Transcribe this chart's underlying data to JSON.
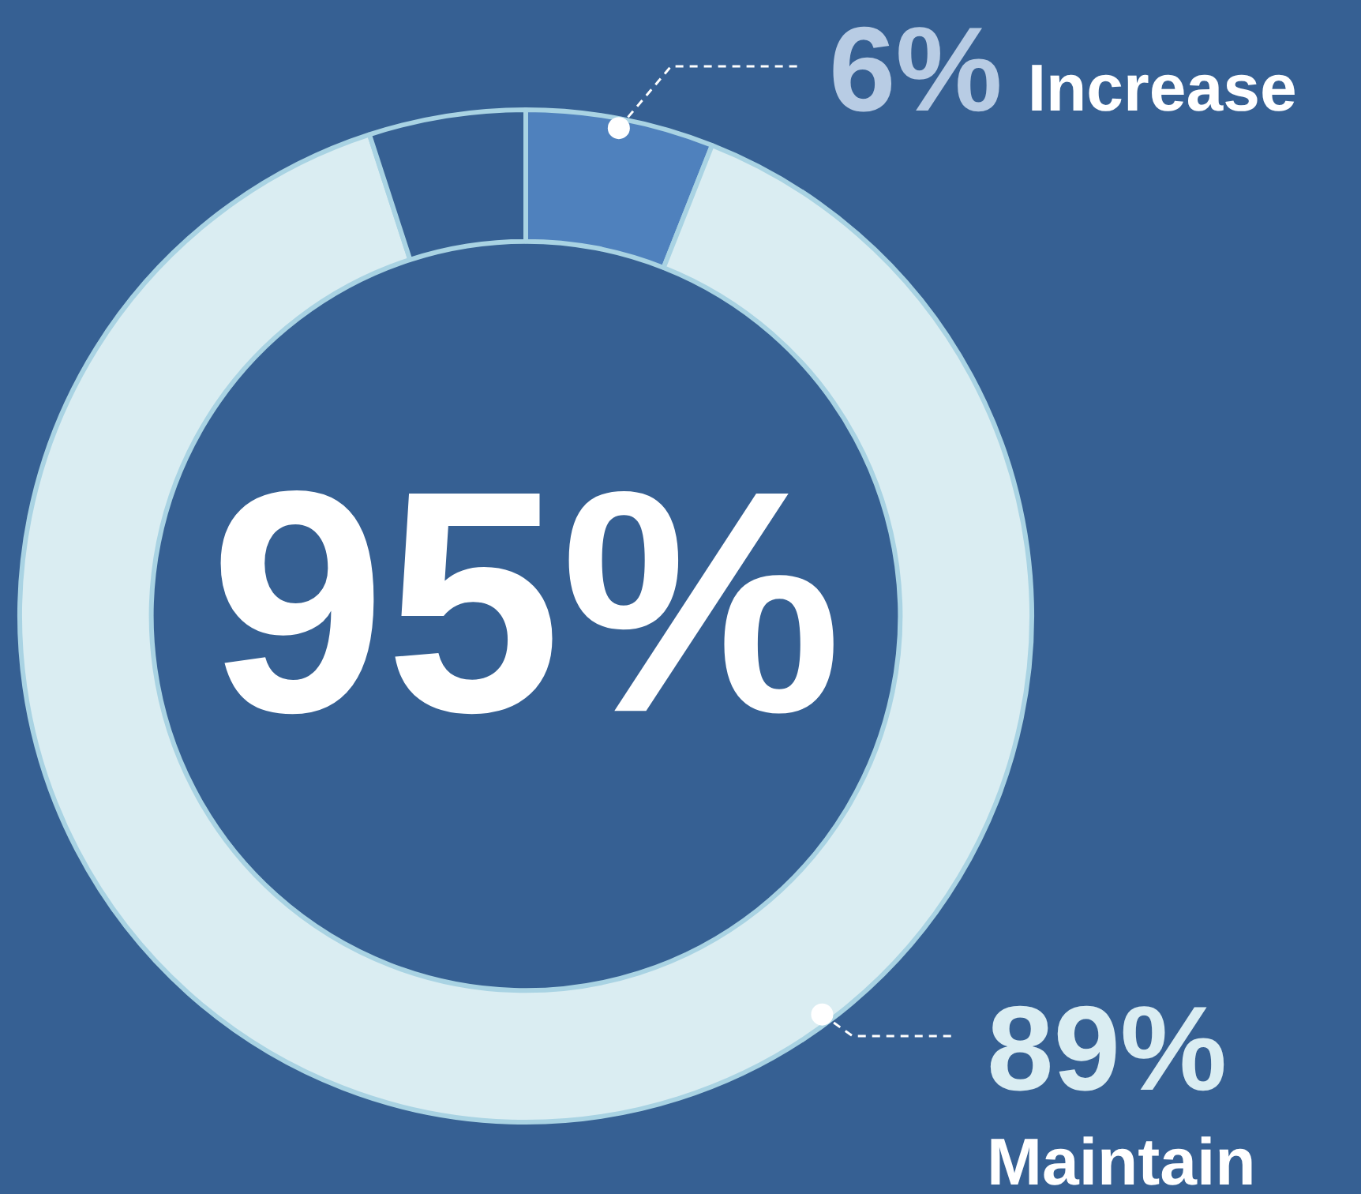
{
  "chart_data": {
    "type": "donut",
    "categories": [
      "Increase",
      "Maintain",
      null
    ],
    "values": [
      6,
      89,
      5
    ],
    "colors": [
      "#4f81bd",
      "#daedf2",
      "#366093"
    ],
    "value_labels": [
      "6%",
      "89%",
      null
    ],
    "annotations": [
      "95%"
    ],
    "legend": false
  }
}
